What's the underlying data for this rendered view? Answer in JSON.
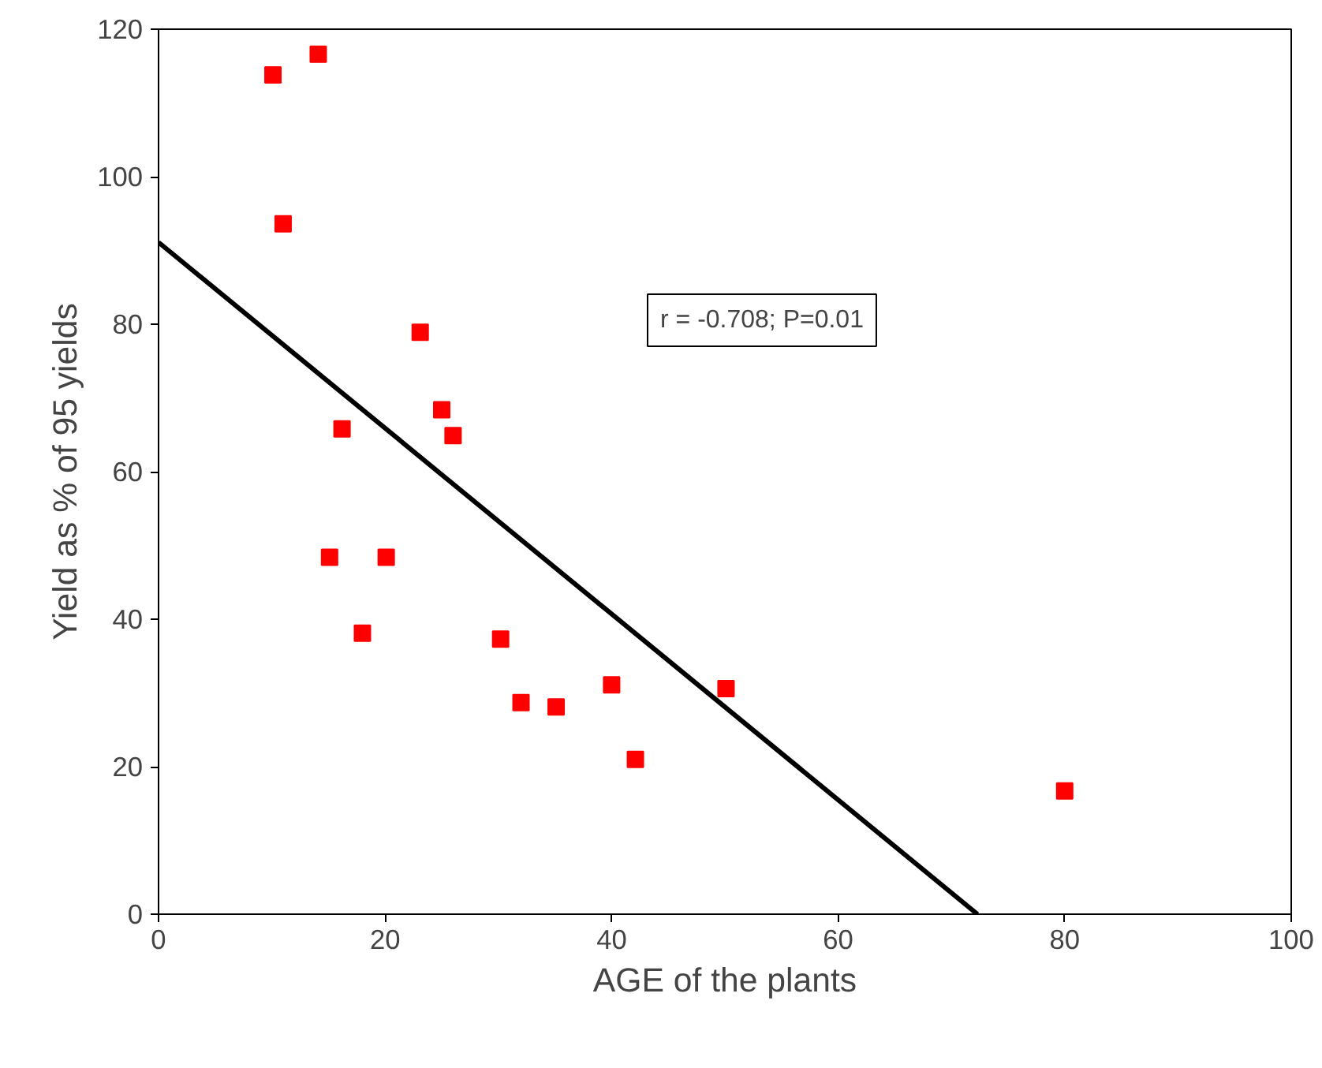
{
  "chart_data": {
    "type": "scatter",
    "xlabel": "AGE of the plants",
    "ylabel": "Yield as % of 95 yields",
    "xlim": [
      0,
      100
    ],
    "ylim": [
      0,
      120
    ],
    "xticks": [
      0,
      20,
      40,
      60,
      80,
      100
    ],
    "yticks": [
      0,
      20,
      40,
      60,
      80,
      100,
      120
    ],
    "grid": false,
    "annotations": [
      "r = -0.708; P=0.01"
    ],
    "series": [
      {
        "color": "#ff0000",
        "marker": "square",
        "x": [
          10.1,
          14.1,
          11.0,
          23.1,
          25.0,
          26.0,
          16.2,
          15.1,
          20.1,
          18.0,
          30.2,
          32.0,
          35.1,
          40.0,
          42.1,
          50.1,
          80.0
        ],
        "values": [
          113.8,
          116.6,
          93.6,
          78.9,
          68.4,
          64.9,
          65.8,
          48.4,
          48.4,
          38.1,
          37.3,
          28.7,
          28.1,
          31.1,
          21.0,
          30.6,
          16.7
        ]
      },
      {
        "type": "line",
        "color": "#000000",
        "line_style": "solid",
        "x": [
          0,
          72.3
        ],
        "values": [
          91.1,
          0
        ]
      }
    ]
  }
}
